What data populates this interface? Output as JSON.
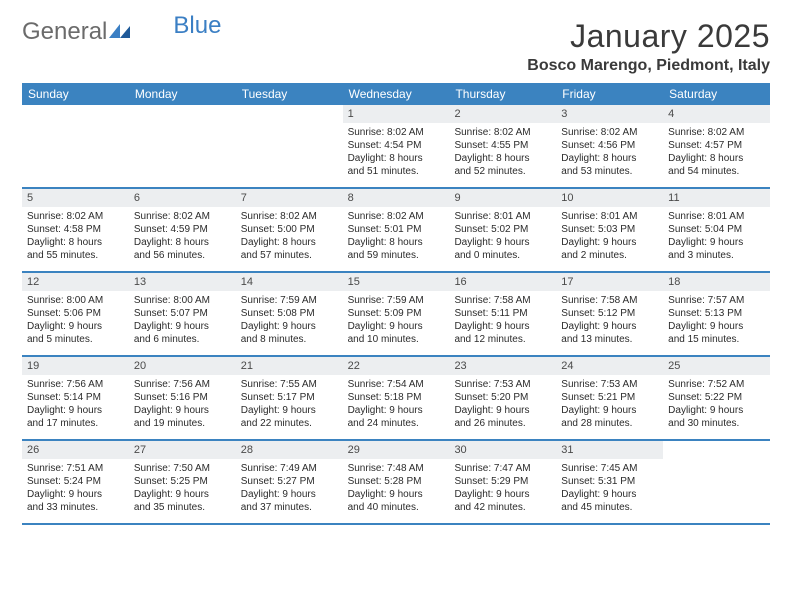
{
  "logo": {
    "text_gray": "General",
    "text_blue": "Blue"
  },
  "title": "January 2025",
  "location": "Bosco Marengo, Piedmont, Italy",
  "colors": {
    "header_bg": "#3b83c0",
    "header_text": "#ffffff",
    "daynum_bg": "#eceef0",
    "border": "#3b83c0",
    "logo_gray": "#6b6b6b",
    "logo_blue": "#3b7fc4",
    "body_text": "#2b2b2b"
  },
  "day_headers": [
    "Sunday",
    "Monday",
    "Tuesday",
    "Wednesday",
    "Thursday",
    "Friday",
    "Saturday"
  ],
  "weeks": [
    [
      {
        "n": "",
        "empty": true
      },
      {
        "n": "",
        "empty": true
      },
      {
        "n": "",
        "empty": true
      },
      {
        "n": "1",
        "sunrise": "Sunrise: 8:02 AM",
        "sunset": "Sunset: 4:54 PM",
        "day1": "Daylight: 8 hours",
        "day2": "and 51 minutes."
      },
      {
        "n": "2",
        "sunrise": "Sunrise: 8:02 AM",
        "sunset": "Sunset: 4:55 PM",
        "day1": "Daylight: 8 hours",
        "day2": "and 52 minutes."
      },
      {
        "n": "3",
        "sunrise": "Sunrise: 8:02 AM",
        "sunset": "Sunset: 4:56 PM",
        "day1": "Daylight: 8 hours",
        "day2": "and 53 minutes."
      },
      {
        "n": "4",
        "sunrise": "Sunrise: 8:02 AM",
        "sunset": "Sunset: 4:57 PM",
        "day1": "Daylight: 8 hours",
        "day2": "and 54 minutes."
      }
    ],
    [
      {
        "n": "5",
        "sunrise": "Sunrise: 8:02 AM",
        "sunset": "Sunset: 4:58 PM",
        "day1": "Daylight: 8 hours",
        "day2": "and 55 minutes."
      },
      {
        "n": "6",
        "sunrise": "Sunrise: 8:02 AM",
        "sunset": "Sunset: 4:59 PM",
        "day1": "Daylight: 8 hours",
        "day2": "and 56 minutes."
      },
      {
        "n": "7",
        "sunrise": "Sunrise: 8:02 AM",
        "sunset": "Sunset: 5:00 PM",
        "day1": "Daylight: 8 hours",
        "day2": "and 57 minutes."
      },
      {
        "n": "8",
        "sunrise": "Sunrise: 8:02 AM",
        "sunset": "Sunset: 5:01 PM",
        "day1": "Daylight: 8 hours",
        "day2": "and 59 minutes."
      },
      {
        "n": "9",
        "sunrise": "Sunrise: 8:01 AM",
        "sunset": "Sunset: 5:02 PM",
        "day1": "Daylight: 9 hours",
        "day2": "and 0 minutes."
      },
      {
        "n": "10",
        "sunrise": "Sunrise: 8:01 AM",
        "sunset": "Sunset: 5:03 PM",
        "day1": "Daylight: 9 hours",
        "day2": "and 2 minutes."
      },
      {
        "n": "11",
        "sunrise": "Sunrise: 8:01 AM",
        "sunset": "Sunset: 5:04 PM",
        "day1": "Daylight: 9 hours",
        "day2": "and 3 minutes."
      }
    ],
    [
      {
        "n": "12",
        "sunrise": "Sunrise: 8:00 AM",
        "sunset": "Sunset: 5:06 PM",
        "day1": "Daylight: 9 hours",
        "day2": "and 5 minutes."
      },
      {
        "n": "13",
        "sunrise": "Sunrise: 8:00 AM",
        "sunset": "Sunset: 5:07 PM",
        "day1": "Daylight: 9 hours",
        "day2": "and 6 minutes."
      },
      {
        "n": "14",
        "sunrise": "Sunrise: 7:59 AM",
        "sunset": "Sunset: 5:08 PM",
        "day1": "Daylight: 9 hours",
        "day2": "and 8 minutes."
      },
      {
        "n": "15",
        "sunrise": "Sunrise: 7:59 AM",
        "sunset": "Sunset: 5:09 PM",
        "day1": "Daylight: 9 hours",
        "day2": "and 10 minutes."
      },
      {
        "n": "16",
        "sunrise": "Sunrise: 7:58 AM",
        "sunset": "Sunset: 5:11 PM",
        "day1": "Daylight: 9 hours",
        "day2": "and 12 minutes."
      },
      {
        "n": "17",
        "sunrise": "Sunrise: 7:58 AM",
        "sunset": "Sunset: 5:12 PM",
        "day1": "Daylight: 9 hours",
        "day2": "and 13 minutes."
      },
      {
        "n": "18",
        "sunrise": "Sunrise: 7:57 AM",
        "sunset": "Sunset: 5:13 PM",
        "day1": "Daylight: 9 hours",
        "day2": "and 15 minutes."
      }
    ],
    [
      {
        "n": "19",
        "sunrise": "Sunrise: 7:56 AM",
        "sunset": "Sunset: 5:14 PM",
        "day1": "Daylight: 9 hours",
        "day2": "and 17 minutes."
      },
      {
        "n": "20",
        "sunrise": "Sunrise: 7:56 AM",
        "sunset": "Sunset: 5:16 PM",
        "day1": "Daylight: 9 hours",
        "day2": "and 19 minutes."
      },
      {
        "n": "21",
        "sunrise": "Sunrise: 7:55 AM",
        "sunset": "Sunset: 5:17 PM",
        "day1": "Daylight: 9 hours",
        "day2": "and 22 minutes."
      },
      {
        "n": "22",
        "sunrise": "Sunrise: 7:54 AM",
        "sunset": "Sunset: 5:18 PM",
        "day1": "Daylight: 9 hours",
        "day2": "and 24 minutes."
      },
      {
        "n": "23",
        "sunrise": "Sunrise: 7:53 AM",
        "sunset": "Sunset: 5:20 PM",
        "day1": "Daylight: 9 hours",
        "day2": "and 26 minutes."
      },
      {
        "n": "24",
        "sunrise": "Sunrise: 7:53 AM",
        "sunset": "Sunset: 5:21 PM",
        "day1": "Daylight: 9 hours",
        "day2": "and 28 minutes."
      },
      {
        "n": "25",
        "sunrise": "Sunrise: 7:52 AM",
        "sunset": "Sunset: 5:22 PM",
        "day1": "Daylight: 9 hours",
        "day2": "and 30 minutes."
      }
    ],
    [
      {
        "n": "26",
        "sunrise": "Sunrise: 7:51 AM",
        "sunset": "Sunset: 5:24 PM",
        "day1": "Daylight: 9 hours",
        "day2": "and 33 minutes."
      },
      {
        "n": "27",
        "sunrise": "Sunrise: 7:50 AM",
        "sunset": "Sunset: 5:25 PM",
        "day1": "Daylight: 9 hours",
        "day2": "and 35 minutes."
      },
      {
        "n": "28",
        "sunrise": "Sunrise: 7:49 AM",
        "sunset": "Sunset: 5:27 PM",
        "day1": "Daylight: 9 hours",
        "day2": "and 37 minutes."
      },
      {
        "n": "29",
        "sunrise": "Sunrise: 7:48 AM",
        "sunset": "Sunset: 5:28 PM",
        "day1": "Daylight: 9 hours",
        "day2": "and 40 minutes."
      },
      {
        "n": "30",
        "sunrise": "Sunrise: 7:47 AM",
        "sunset": "Sunset: 5:29 PM",
        "day1": "Daylight: 9 hours",
        "day2": "and 42 minutes."
      },
      {
        "n": "31",
        "sunrise": "Sunrise: 7:45 AM",
        "sunset": "Sunset: 5:31 PM",
        "day1": "Daylight: 9 hours",
        "day2": "and 45 minutes."
      },
      {
        "n": "",
        "empty": true
      }
    ]
  ]
}
